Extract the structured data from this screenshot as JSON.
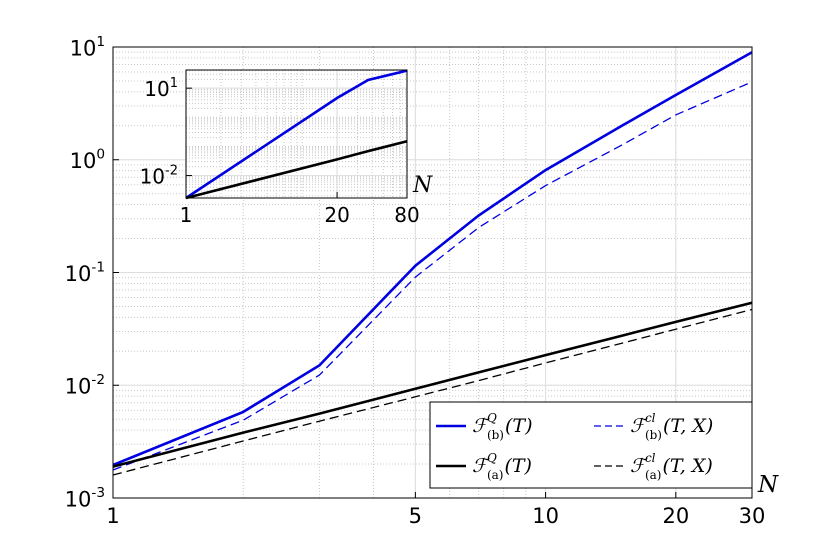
{
  "chart_data": [
    {
      "type": "line",
      "x_label": "N",
      "x": [
        1,
        2,
        3,
        5,
        7,
        10,
        15,
        20,
        30
      ],
      "series": [
        {
          "name": {
            "symbol": "ℱ",
            "sup": "Q",
            "sub": "(b)",
            "args": "(T)"
          },
          "color": "#0000e0",
          "line_style": "solid",
          "values": [
            0.00196,
            0.0058,
            0.015,
            0.115,
            0.32,
            0.81,
            2.0,
            3.75,
            9.0
          ]
        },
        {
          "name": {
            "symbol": "ℱ",
            "sup": "cl",
            "sub": "(b)",
            "args": "(T, X)"
          },
          "color": "#0000e0",
          "line_style": "dashed",
          "values": [
            0.00177,
            0.0049,
            0.0123,
            0.091,
            0.25,
            0.59,
            1.35,
            2.5,
            4.9
          ]
        },
        {
          "name": {
            "symbol": "ℱ",
            "sup": "Q",
            "sub": "(a)",
            "args": "(T)"
          },
          "color": "#000000",
          "line_style": "solid",
          "values": [
            0.0019,
            0.0038,
            0.0056,
            0.0093,
            0.013,
            0.0185,
            0.0275,
            0.0365,
            0.054
          ]
        },
        {
          "name": {
            "symbol": "ℱ",
            "sup": "cl",
            "sub": "(a)",
            "args": "(T, X)"
          },
          "color": "#000000",
          "line_style": "dashed",
          "values": [
            0.0016,
            0.0032,
            0.0048,
            0.0079,
            0.011,
            0.0158,
            0.0236,
            0.0314,
            0.047
          ]
        }
      ],
      "log_x": true,
      "log_y": true,
      "xlim": [
        1,
        30
      ],
      "ylim": [
        0.001,
        10
      ],
      "xticks": [
        1,
        5,
        10,
        20,
        30
      ],
      "yticks": [
        {
          "value": 0.001,
          "label": "10",
          "exponent": "-3"
        },
        {
          "value": 0.01,
          "label": "10",
          "exponent": "-2"
        },
        {
          "value": 0.1,
          "label": "10",
          "exponent": "-1"
        },
        {
          "value": 1,
          "label": "10",
          "exponent": "0"
        },
        {
          "value": 10,
          "label": "10",
          "exponent": "1"
        }
      ],
      "grid": true,
      "minor_grid": true,
      "legend_position": "lower right"
    },
    {
      "type": "line",
      "x_label": "N",
      "x": [
        1,
        20,
        37,
        80
      ],
      "series": [
        {
          "color": "#0000e0",
          "line_style": "solid",
          "values": [
            0.0017,
            4.6,
            19,
            40
          ]
        },
        {
          "color": "#000000",
          "line_style": "solid",
          "values": [
            0.0017,
            0.036,
            0.069,
            0.15
          ]
        }
      ],
      "log_x": true,
      "log_y": true,
      "xlim": [
        1,
        80
      ],
      "ylim": [
        0.0017,
        42
      ],
      "xticks": [
        1,
        20,
        80
      ],
      "yticks": [
        {
          "value": 0.01,
          "label": "10",
          "exponent": "-2"
        },
        {
          "value": 10,
          "label": "10",
          "exponent": "1"
        }
      ],
      "grid": true,
      "minor_grid": true
    }
  ]
}
